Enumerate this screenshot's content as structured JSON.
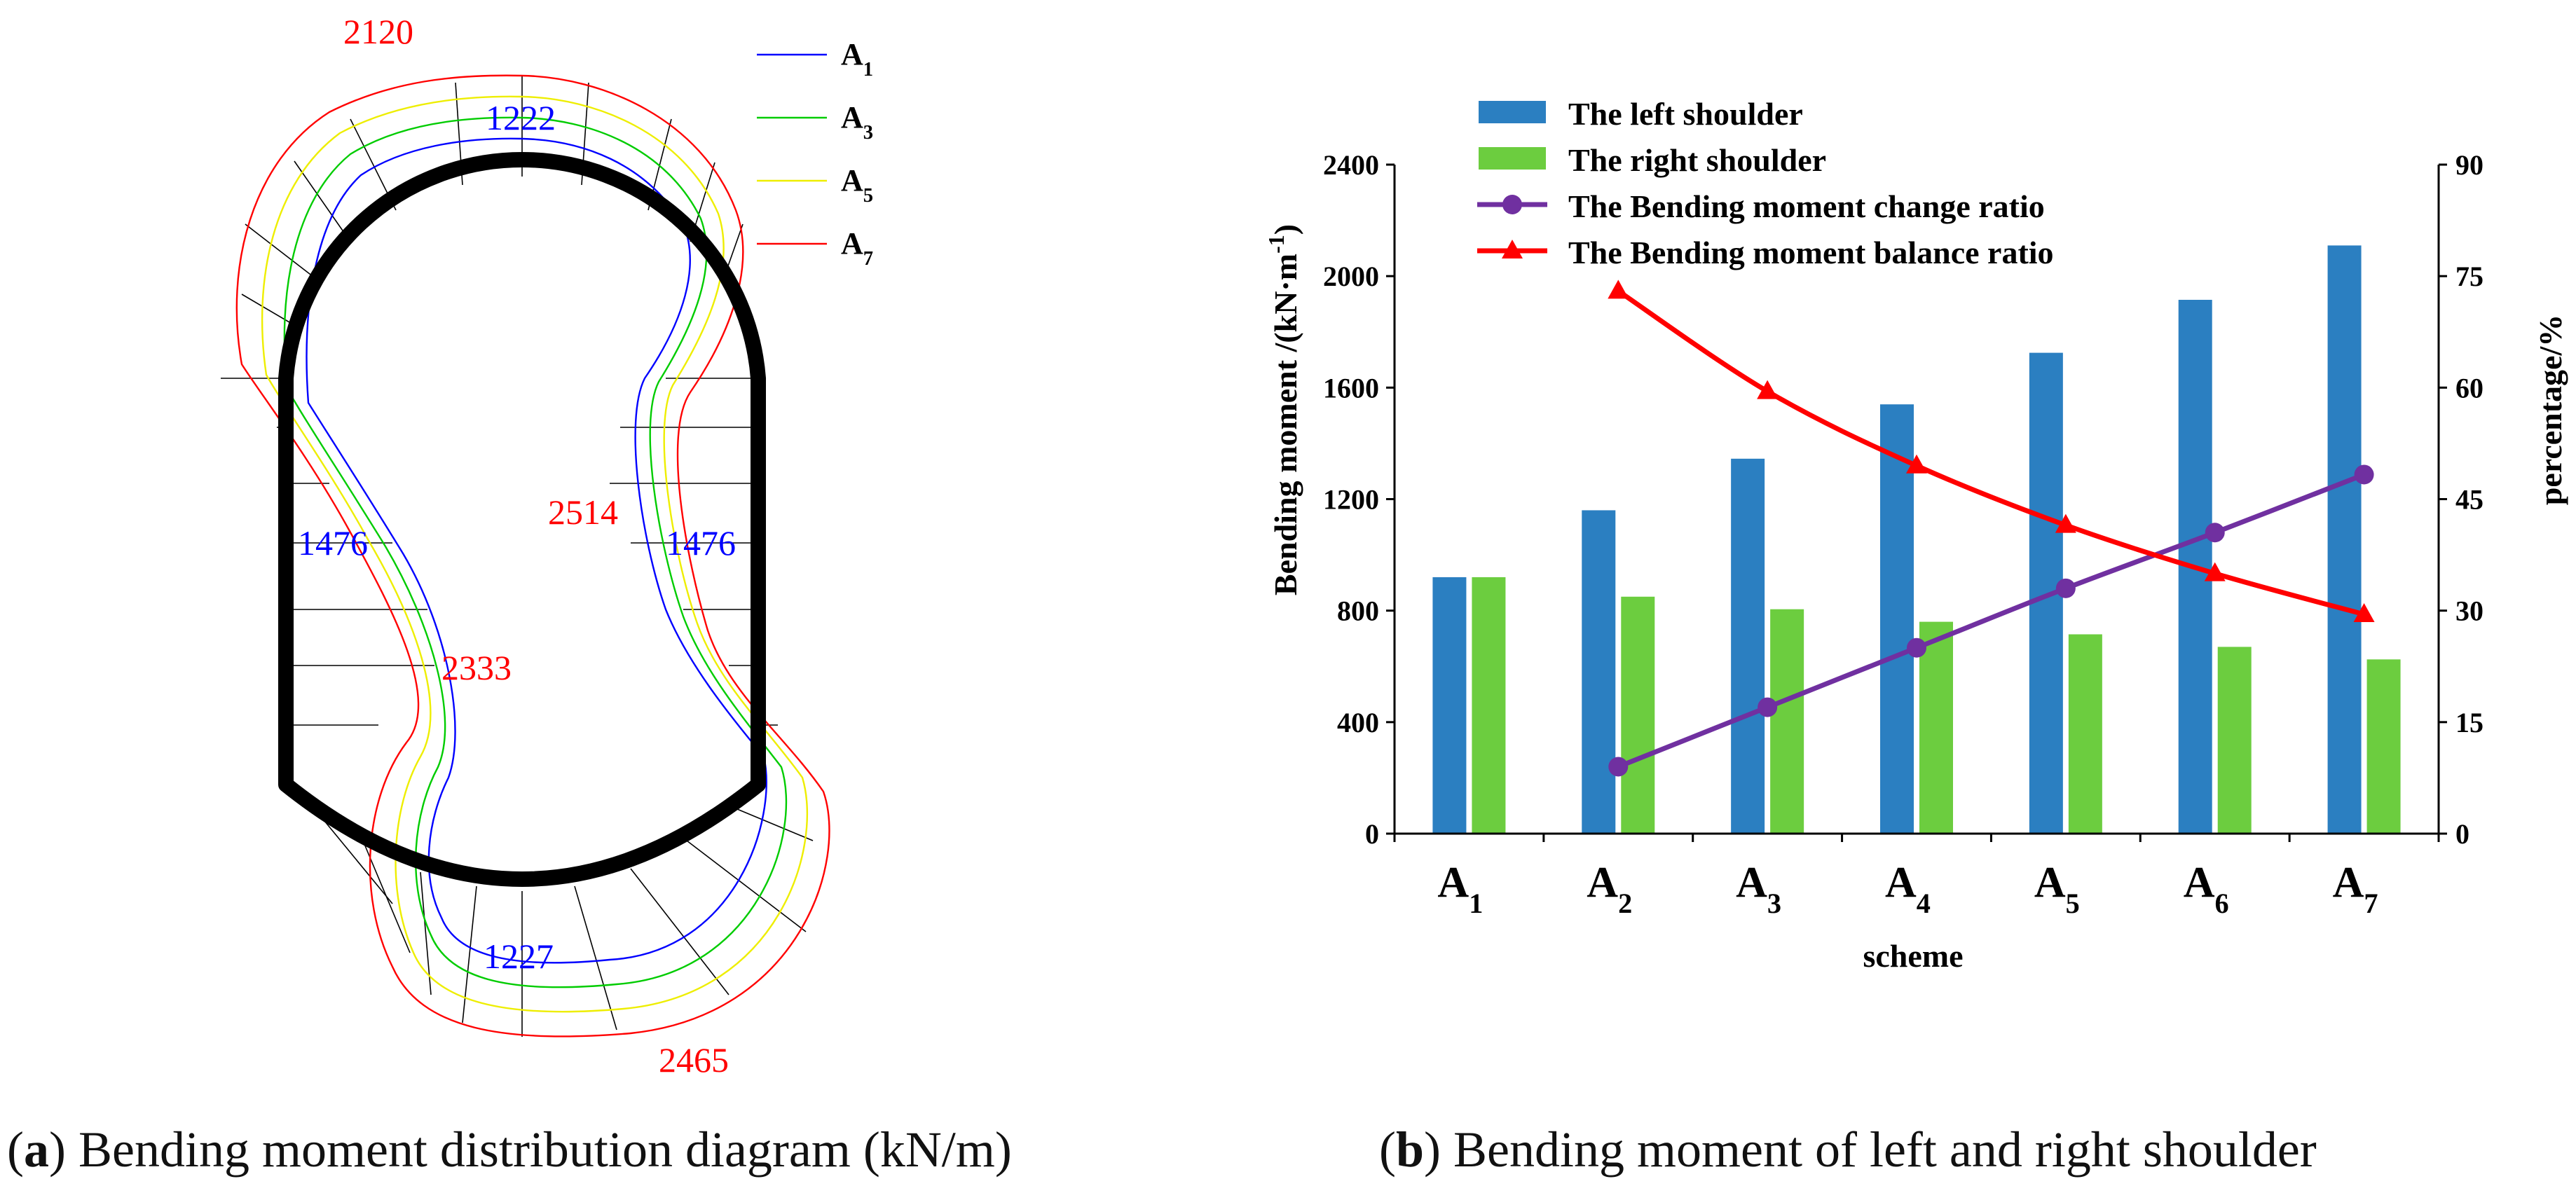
{
  "diagram": {
    "labels": {
      "top_red": "2120",
      "top_blue": "1222",
      "left_blue": "1476",
      "right_blue": "1476",
      "mid_red": "2514",
      "left_red": "2333",
      "bottom_blue": "1227",
      "bottom_red": "2465"
    },
    "legend": [
      {
        "base": "A",
        "sub": "1",
        "color": "#0000ff"
      },
      {
        "base": "A",
        "sub": "3",
        "color": "#00cc00"
      },
      {
        "base": "A",
        "sub": "5",
        "color": "#eeee00"
      },
      {
        "base": "A",
        "sub": "7",
        "color": "#ff0000"
      }
    ],
    "caption_letter": "a",
    "caption_rest": " Bending moment distribution diagram (kN/m)"
  },
  "chart_data": {
    "type": "bar",
    "categories": [
      {
        "base": "A",
        "sub": "1"
      },
      {
        "base": "A",
        "sub": "2"
      },
      {
        "base": "A",
        "sub": "3"
      },
      {
        "base": "A",
        "sub": "4"
      },
      {
        "base": "A",
        "sub": "5"
      },
      {
        "base": "A",
        "sub": "6"
      },
      {
        "base": "A",
        "sub": "7"
      }
    ],
    "series": [
      {
        "name": "The left shoulder",
        "kind": "bar",
        "color": "#2b7fc1",
        "axis": "left",
        "values": [
          920,
          1160,
          1345,
          1540,
          1725,
          1915,
          2110
        ]
      },
      {
        "name": "The right shoulder",
        "kind": "bar",
        "color": "#6ccd3f",
        "axis": "left",
        "values": [
          920,
          850,
          805,
          760,
          715,
          670,
          625
        ]
      },
      {
        "name": "The Bending moment change ratio",
        "kind": "line",
        "marker": "circle",
        "color": "#7030a0",
        "axis": "right",
        "values": [
          null,
          9,
          17,
          25,
          33,
          40.5,
          48.3
        ]
      },
      {
        "name": "The Bending moment balance ratio",
        "kind": "line",
        "marker": "triangle",
        "color": "#ff0000",
        "axis": "right",
        "values": [
          null,
          73,
          59.5,
          49.5,
          41.5,
          35,
          29.5
        ]
      }
    ],
    "ylabel_main": "Bending moment /(kN·m",
    "ylabel_sup": "-1",
    "ylabel_close": ")",
    "y2label": "percentage/%",
    "xlabel": "scheme",
    "ylim": [
      0,
      2400
    ],
    "y2lim": [
      0,
      90
    ],
    "yticks": [
      "0",
      "400",
      "800",
      "1200",
      "1600",
      "2000",
      "2400"
    ],
    "y2ticks": [
      "0",
      "15",
      "30",
      "45",
      "60",
      "75",
      "90"
    ],
    "legend_position": "top-left",
    "caption_letter": "b",
    "caption_rest": " Bending moment of left and right shoulder"
  }
}
